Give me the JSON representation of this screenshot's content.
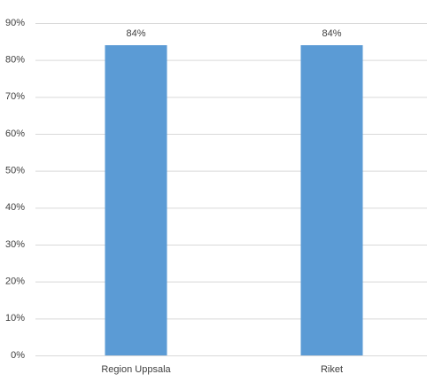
{
  "chart_data": {
    "type": "bar",
    "categories": [
      "Region Uppsala",
      "Riket"
    ],
    "values": [
      84,
      84
    ],
    "value_labels": [
      "84%",
      "84%"
    ],
    "color": "#5b9bd5",
    "ylim": [
      0,
      90
    ],
    "yticks": [
      {
        "value": 0,
        "label": "0%"
      },
      {
        "value": 10,
        "label": "10%"
      },
      {
        "value": 20,
        "label": "20%"
      },
      {
        "value": 30,
        "label": "30%"
      },
      {
        "value": 40,
        "label": "40%"
      },
      {
        "value": 50,
        "label": "50%"
      },
      {
        "value": 60,
        "label": "60%"
      },
      {
        "value": 70,
        "label": "70%"
      },
      {
        "value": 80,
        "label": "80%"
      },
      {
        "value": 90,
        "label": "90%"
      }
    ],
    "grid": true
  }
}
